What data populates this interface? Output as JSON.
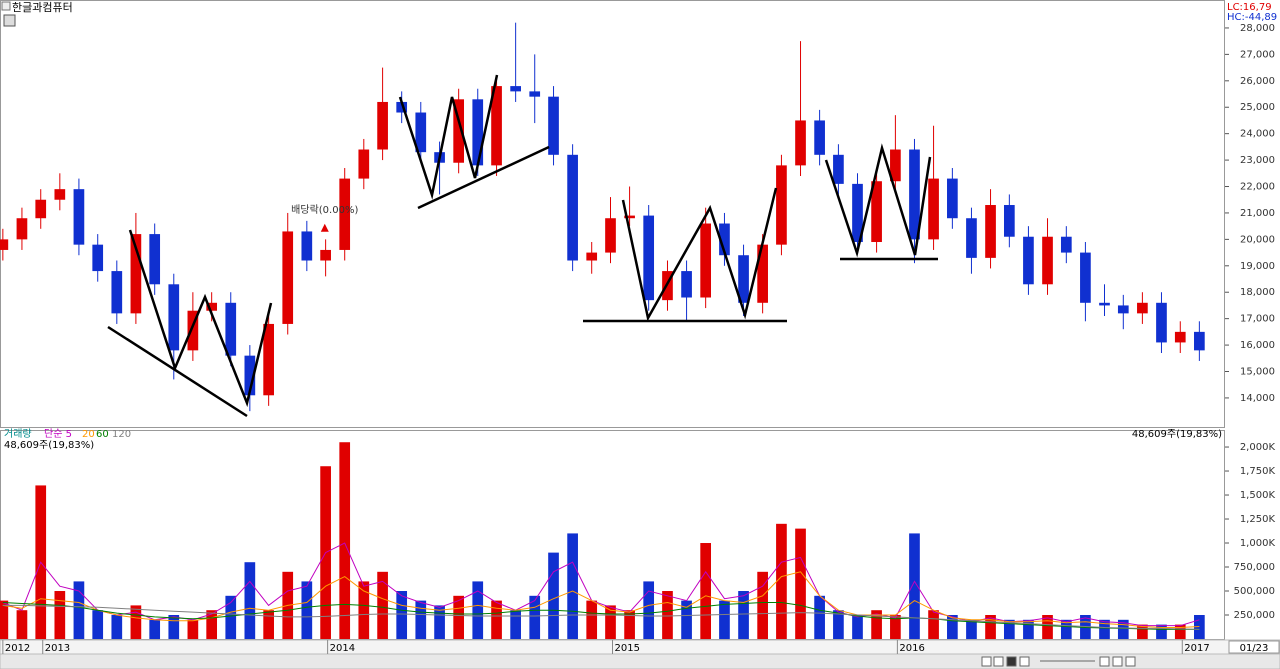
{
  "chart_data": [
    {
      "type": "candlestick",
      "title": "한글과컴퓨터",
      "indicator_low": "LC:16,79",
      "indicator_high": "HC:-44,89",
      "x": [
        2012.86,
        2012.927,
        2012.993,
        2013.06,
        2013.127,
        2013.193,
        2013.26,
        2013.327,
        2013.393,
        2013.46,
        2013.527,
        2013.593,
        2013.66,
        2013.727,
        2013.793,
        2013.86,
        2013.927,
        2013.993,
        2014.06,
        2014.127,
        2014.193,
        2014.26,
        2014.327,
        2014.393,
        2014.46,
        2014.527,
        2014.593,
        2014.66,
        2014.727,
        2014.793,
        2014.86,
        2014.927,
        2014.993,
        2015.06,
        2015.127,
        2015.193,
        2015.26,
        2015.327,
        2015.393,
        2015.46,
        2015.527,
        2015.593,
        2015.66,
        2015.727,
        2015.793,
        2015.86,
        2015.927,
        2015.993,
        2016.06,
        2016.127,
        2016.193,
        2016.26,
        2016.327,
        2016.393,
        2016.46,
        2016.527,
        2016.593,
        2016.66,
        2016.727,
        2016.793,
        2016.86,
        2016.927,
        2016.993,
        2017.06
      ],
      "values": [
        [
          19600,
          20400,
          19200,
          20000
        ],
        [
          20000,
          21200,
          19600,
          20800
        ],
        [
          20800,
          21900,
          20400,
          21500
        ],
        [
          21500,
          22500,
          21100,
          21900
        ],
        [
          21900,
          22300,
          19400,
          19800
        ],
        [
          19800,
          20200,
          18400,
          18800
        ],
        [
          18800,
          19200,
          16800,
          17200
        ],
        [
          17200,
          21000,
          16800,
          20200
        ],
        [
          20200,
          20600,
          17900,
          18300
        ],
        [
          18300,
          18700,
          14700,
          15800
        ],
        [
          15800,
          18000,
          15400,
          17300
        ],
        [
          17300,
          18000,
          16900,
          17600
        ],
        [
          17600,
          18000,
          15200,
          15600
        ],
        [
          15600,
          16000,
          13500,
          14100
        ],
        [
          14100,
          17200,
          13700,
          16800
        ],
        [
          16800,
          21000,
          16400,
          20300
        ],
        [
          20300,
          20700,
          18800,
          19200
        ],
        [
          19200,
          20000,
          18600,
          19600
        ],
        [
          19600,
          22700,
          19200,
          22300
        ],
        [
          22300,
          23800,
          21900,
          23400
        ],
        [
          23400,
          26500,
          23000,
          25200
        ],
        [
          25200,
          25600,
          24400,
          24800
        ],
        [
          24800,
          25200,
          22900,
          23300
        ],
        [
          23300,
          23700,
          21700,
          22900
        ],
        [
          22900,
          25700,
          22500,
          25300
        ],
        [
          25300,
          25700,
          22400,
          22800
        ],
        [
          22800,
          26200,
          22400,
          25800
        ],
        [
          25800,
          28200,
          25200,
          25600
        ],
        [
          25600,
          27000,
          24400,
          25400
        ],
        [
          25400,
          25800,
          22800,
          23200
        ],
        [
          23200,
          23600,
          18800,
          19200
        ],
        [
          19200,
          19900,
          18700,
          19500
        ],
        [
          19500,
          21600,
          19100,
          20800
        ],
        [
          20800,
          22000,
          20500,
          20900
        ],
        [
          20900,
          21300,
          17300,
          17700
        ],
        [
          17700,
          19200,
          17300,
          18800
        ],
        [
          18800,
          19200,
          16900,
          17800
        ],
        [
          17800,
          21200,
          17400,
          20600
        ],
        [
          20600,
          21000,
          19000,
          19400
        ],
        [
          19400,
          19800,
          17100,
          17600
        ],
        [
          17600,
          20200,
          17200,
          19800
        ],
        [
          19800,
          23200,
          19400,
          22800
        ],
        [
          22800,
          27500,
          22400,
          24500
        ],
        [
          24500,
          24900,
          22800,
          23200
        ],
        [
          23200,
          23600,
          21700,
          22100
        ],
        [
          22100,
          22500,
          19500,
          19900
        ],
        [
          19900,
          22600,
          19500,
          22200
        ],
        [
          22200,
          24700,
          21800,
          23400
        ],
        [
          23400,
          23800,
          19100,
          20000
        ],
        [
          20000,
          24300,
          19600,
          22300
        ],
        [
          22300,
          22700,
          20400,
          20800
        ],
        [
          20800,
          21200,
          18700,
          19300
        ],
        [
          19300,
          21900,
          18900,
          21300
        ],
        [
          21300,
          21700,
          19700,
          20100
        ],
        [
          20100,
          20500,
          17900,
          18300
        ],
        [
          18300,
          20800,
          17900,
          20100
        ],
        [
          20100,
          20500,
          19100,
          19500
        ],
        [
          19500,
          19900,
          16900,
          17600
        ],
        [
          17600,
          18300,
          17100,
          17500
        ],
        [
          17500,
          17900,
          16600,
          17200
        ],
        [
          17200,
          18000,
          16800,
          17600
        ],
        [
          17600,
          18000,
          15700,
          16100
        ],
        [
          16100,
          16900,
          15700,
          16500
        ],
        [
          16500,
          16900,
          15400,
          15800
        ]
      ],
      "up_color": "#e00000",
      "down_color": "#1030d0",
      "annotation": {
        "text": "배당락(0.00%)",
        "x": 2013.99,
        "value": 20400,
        "color": "#e00000"
      },
      "xlim": [
        2012.85,
        2017.15
      ],
      "ylim": [
        12900,
        29020
      ],
      "yticks": [
        {
          "value": 14000,
          "label": "14,000"
        },
        {
          "value": 15000,
          "label": "15,000"
        },
        {
          "value": 16000,
          "label": "16,000"
        },
        {
          "value": 17000,
          "label": "17,000"
        },
        {
          "value": 18000,
          "label": "18,000"
        },
        {
          "value": 19000,
          "label": "19,000"
        },
        {
          "value": 20000,
          "label": "20,000"
        },
        {
          "value": 21000,
          "label": "21,000"
        },
        {
          "value": 22000,
          "label": "22,000"
        },
        {
          "value": 23000,
          "label": "23,000"
        },
        {
          "value": 24000,
          "label": "24,000"
        },
        {
          "value": 25000,
          "label": "25,000"
        },
        {
          "value": 26000,
          "label": "26,000"
        },
        {
          "value": 27000,
          "label": "27,000"
        },
        {
          "value": 28000,
          "label": "28,000"
        }
      ],
      "grid": false
    },
    {
      "type": "bar",
      "last_label": "48,609주(19,83%)",
      "cursor_label": "01/23",
      "x": [
        2012.86,
        2012.927,
        2012.993,
        2013.06,
        2013.127,
        2013.193,
        2013.26,
        2013.327,
        2013.393,
        2013.46,
        2013.527,
        2013.593,
        2013.66,
        2013.727,
        2013.793,
        2013.86,
        2013.927,
        2013.993,
        2014.06,
        2014.127,
        2014.193,
        2014.26,
        2014.327,
        2014.393,
        2014.46,
        2014.527,
        2014.593,
        2014.66,
        2014.727,
        2014.793,
        2014.86,
        2014.927,
        2014.993,
        2015.06,
        2015.127,
        2015.193,
        2015.26,
        2015.327,
        2015.393,
        2015.46,
        2015.527,
        2015.593,
        2015.66,
        2015.727,
        2015.793,
        2015.86,
        2015.927,
        2015.993,
        2016.06,
        2016.127,
        2016.193,
        2016.26,
        2016.327,
        2016.393,
        2016.46,
        2016.527,
        2016.593,
        2016.66,
        2016.727,
        2016.793,
        2016.86,
        2016.927,
        2016.993,
        2017.06
      ],
      "series": [
        {
          "name": "거래량",
          "color": "#008b8b",
          "up_color": "#e00000",
          "down_color": "#1030d0",
          "values": [
            400000,
            300000,
            1600000,
            500000,
            600000,
            300000,
            250000,
            350000,
            200000,
            250000,
            200000,
            300000,
            450000,
            800000,
            300000,
            700000,
            600000,
            1800000,
            2050000,
            600000,
            700000,
            500000,
            400000,
            350000,
            450000,
            600000,
            400000,
            300000,
            450000,
            900000,
            1100000,
            400000,
            350000,
            300000,
            600000,
            500000,
            400000,
            1000000,
            400000,
            500000,
            700000,
            1200000,
            1150000,
            450000,
            300000,
            250000,
            300000,
            250000,
            1100000,
            300000,
            250000,
            200000,
            250000,
            200000,
            200000,
            250000,
            200000,
            250000,
            200000,
            200000,
            150000,
            150000,
            150000,
            250000
          ]
        },
        {
          "name": "단순 5",
          "color": "#c000c0",
          "values": [
            380000,
            300000,
            800000,
            550000,
            500000,
            300000,
            250000,
            280000,
            200000,
            230000,
            200000,
            260000,
            380000,
            600000,
            350000,
            500000,
            550000,
            900000,
            1000000,
            550000,
            600000,
            450000,
            380000,
            330000,
            400000,
            500000,
            380000,
            300000,
            400000,
            700000,
            800000,
            400000,
            330000,
            280000,
            500000,
            450000,
            400000,
            700000,
            420000,
            450000,
            550000,
            800000,
            850000,
            450000,
            280000,
            230000,
            260000,
            220000,
            600000,
            280000,
            230000,
            180000,
            220000,
            180000,
            190000,
            220000,
            180000,
            220000,
            180000,
            170000,
            140000,
            140000,
            140000,
            200000
          ]
        },
        {
          "name": "20",
          "color": "#ff9900",
          "values": [
            350000,
            320000,
            420000,
            400000,
            380000,
            300000,
            250000,
            220000,
            200000,
            190000,
            190000,
            220000,
            280000,
            320000,
            300000,
            350000,
            380000,
            550000,
            650000,
            500000,
            420000,
            350000,
            320000,
            300000,
            320000,
            350000,
            320000,
            300000,
            330000,
            420000,
            500000,
            400000,
            300000,
            280000,
            350000,
            380000,
            330000,
            450000,
            400000,
            380000,
            450000,
            650000,
            700000,
            450000,
            300000,
            250000,
            250000,
            250000,
            400000,
            300000,
            220000,
            200000,
            200000,
            180000,
            180000,
            190000,
            170000,
            180000,
            160000,
            150000,
            130000,
            120000,
            120000,
            130000
          ]
        },
        {
          "name": "60",
          "color": "#008000",
          "values": [
            380000,
            370000,
            360000,
            350000,
            330000,
            300000,
            270000,
            250000,
            230000,
            220000,
            210000,
            220000,
            240000,
            260000,
            280000,
            300000,
            330000,
            350000,
            360000,
            350000,
            330000,
            300000,
            280000,
            270000,
            260000,
            260000,
            270000,
            290000,
            300000,
            300000,
            290000,
            270000,
            260000,
            260000,
            270000,
            290000,
            320000,
            340000,
            360000,
            370000,
            380000,
            380000,
            350000,
            300000,
            270000,
            240000,
            220000,
            210000,
            220000,
            210000,
            190000,
            180000,
            170000,
            160000,
            150000,
            140000,
            130000,
            120000,
            115000,
            110000,
            105000,
            100000,
            100000,
            100000
          ]
        },
        {
          "name": "120",
          "color": "#808080",
          "values": [
            350000,
            350000,
            345000,
            340000,
            335000,
            330000,
            320000,
            310000,
            300000,
            290000,
            280000,
            270000,
            260000,
            250000,
            240000,
            230000,
            230000,
            235000,
            245000,
            255000,
            260000,
            260000,
            255000,
            250000,
            245000,
            240000,
            240000,
            240000,
            240000,
            245000,
            250000,
            250000,
            250000,
            245000,
            240000,
            240000,
            245000,
            250000,
            255000,
            260000,
            265000,
            270000,
            275000,
            270000,
            260000,
            250000,
            240000,
            230000,
            220000,
            210000,
            200000,
            190000,
            180000,
            170000,
            160000,
            150000,
            140000,
            130000,
            120000,
            115000,
            110000,
            110000,
            105000,
            100000
          ]
        }
      ],
      "xlim": [
        2012.85,
        2017.15
      ],
      "ylim": [
        0,
        2167000
      ],
      "yticks": [
        {
          "value": 250000,
          "label": "250,000"
        },
        {
          "value": 500000,
          "label": "500,000"
        },
        {
          "value": 750000,
          "label": "750,000"
        },
        {
          "value": 1000000,
          "label": "1,000K"
        },
        {
          "value": 1250000,
          "label": "1,250K"
        },
        {
          "value": 1500000,
          "label": "1,500K"
        },
        {
          "value": 1750000,
          "label": "1,750K"
        },
        {
          "value": 2000000,
          "label": "2,000K"
        }
      ],
      "xticks": [
        {
          "value": 2012.86,
          "label": "2012"
        },
        {
          "value": 2013.0,
          "label": "2013"
        },
        {
          "value": 2014.0,
          "label": "2014"
        },
        {
          "value": 2015.0,
          "label": "2015"
        },
        {
          "value": 2016.0,
          "label": "2016"
        },
        {
          "value": 2017.0,
          "label": "2017"
        }
      ]
    }
  ]
}
